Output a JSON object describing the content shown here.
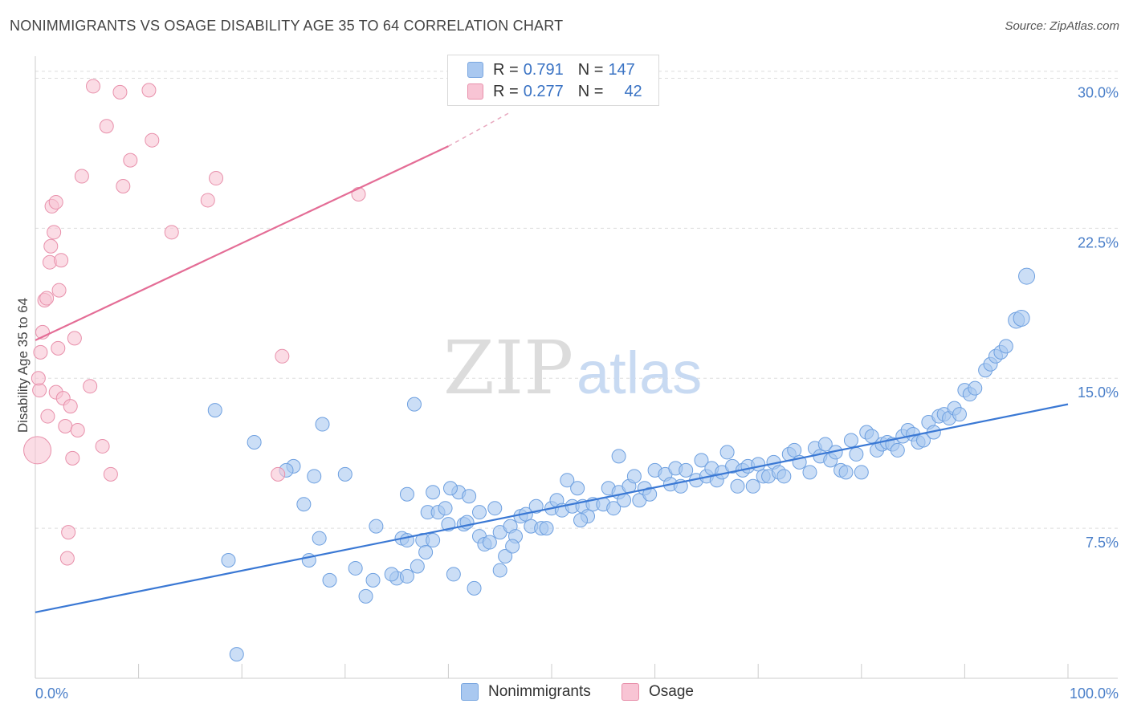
{
  "header": {
    "title": "NONIMMIGRANTS VS OSAGE DISABILITY AGE 35 TO 64 CORRELATION CHART",
    "source": "Source: ZipAtlas.com"
  },
  "watermark": {
    "zip": "ZIP",
    "atlas": "atlas"
  },
  "legend": {
    "rows": [
      {
        "r_label": "R =",
        "r_value": "0.791",
        "n_label": "N =",
        "n_value": "147",
        "color": "#a9c8f0",
        "border": "#7aa7e0"
      },
      {
        "r_label": "R =",
        "r_value": "0.277",
        "n_label": "N =",
        "n_value": "42",
        "color": "#f8c4d4",
        "border": "#e890ab"
      }
    ]
  },
  "bottom_legend": [
    {
      "label": "Nonimmigrants",
      "color": "#a9c8f0",
      "border": "#7aa7e0"
    },
    {
      "label": "Osage",
      "color": "#f8c4d4",
      "border": "#e890ab"
    }
  ],
  "chart_data": {
    "type": "scatter",
    "title": "NONIMMIGRANTS VS OSAGE DISABILITY AGE 35 TO 64 CORRELATION CHART",
    "xlabel": "",
    "ylabel": "Disability Age 35 to 64",
    "xlim": [
      0,
      100
    ],
    "ylim": [
      0,
      30.7
    ],
    "x_tick_labels": [
      "0.0%",
      "100.0%"
    ],
    "y_ticks": [
      {
        "value": 7.5,
        "label": "7.5%"
      },
      {
        "value": 15.0,
        "label": "15.0%"
      },
      {
        "value": 22.5,
        "label": "22.5%"
      },
      {
        "value": 30.0,
        "label": "30.0%"
      }
    ],
    "grid": true,
    "legend_position": "top-center",
    "colors": {
      "nonimmigrants": "#3a78d4",
      "osage": "#e46d96"
    },
    "series": [
      {
        "name": "Nonimmigrants",
        "color": "#a9c8f0",
        "stroke": "#6ea0e0",
        "trend": {
          "x0": 0,
          "y0": 3.3,
          "x1": 100,
          "y1": 13.7
        },
        "points": [
          [
            19.5,
            1.2
          ],
          [
            17.4,
            13.4
          ],
          [
            18.7,
            5.9
          ],
          [
            21.2,
            11.8
          ],
          [
            25,
            10.6
          ],
          [
            26,
            8.7
          ],
          [
            26.5,
            5.9
          ],
          [
            27,
            10.1
          ],
          [
            27.5,
            7
          ],
          [
            27.8,
            12.7
          ],
          [
            28.5,
            4.9
          ],
          [
            30,
            10.2
          ],
          [
            31,
            5.5
          ],
          [
            32,
            4.1
          ],
          [
            32.7,
            4.9
          ],
          [
            33,
            7.6
          ],
          [
            35,
            5
          ],
          [
            35.5,
            7
          ],
          [
            36,
            5.1
          ],
          [
            36,
            9.2
          ],
          [
            36,
            6.9
          ],
          [
            36.7,
            13.7
          ],
          [
            37,
            5.6
          ],
          [
            37.5,
            6.9
          ],
          [
            38,
            8.3
          ],
          [
            38.5,
            6.9
          ],
          [
            38.5,
            9.3
          ],
          [
            39,
            8.3
          ],
          [
            39.7,
            8.5
          ],
          [
            40,
            7.7
          ],
          [
            40.5,
            5.2
          ],
          [
            41,
            9.3
          ],
          [
            41.5,
            7.7
          ],
          [
            41.8,
            7.8
          ],
          [
            42,
            9.1
          ],
          [
            42.5,
            4.5
          ],
          [
            43,
            7.1
          ],
          [
            43,
            8.3
          ],
          [
            43.5,
            6.7
          ],
          [
            44,
            6.8
          ],
          [
            44.5,
            8.5
          ],
          [
            45,
            5.4
          ],
          [
            45,
            7.3
          ],
          [
            45.5,
            6.1
          ],
          [
            46,
            7.6
          ],
          [
            46.5,
            7.1
          ],
          [
            47,
            8.1
          ],
          [
            47.5,
            8.2
          ],
          [
            48,
            7.6
          ],
          [
            48.5,
            8.6
          ],
          [
            49,
            7.5
          ],
          [
            49.5,
            7.5
          ],
          [
            50,
            8.5
          ],
          [
            50.5,
            8.9
          ],
          [
            51,
            8.4
          ],
          [
            51.5,
            9.9
          ],
          [
            52,
            8.6
          ],
          [
            52.5,
            9.5
          ],
          [
            53,
            8.6
          ],
          [
            53.5,
            8.1
          ],
          [
            54,
            8.7
          ],
          [
            55,
            8.7
          ],
          [
            55.5,
            9.5
          ],
          [
            56,
            8.5
          ],
          [
            56.5,
            11.1
          ],
          [
            56.5,
            9.3
          ],
          [
            57,
            8.9
          ],
          [
            57.5,
            9.6
          ],
          [
            58,
            10.1
          ],
          [
            58.5,
            8.9
          ],
          [
            59,
            9.5
          ],
          [
            59.5,
            9.2
          ],
          [
            60,
            10.4
          ],
          [
            61,
            10.2
          ],
          [
            61.5,
            9.7
          ],
          [
            62,
            10.5
          ],
          [
            62.5,
            9.6
          ],
          [
            63,
            10.4
          ],
          [
            64,
            9.9
          ],
          [
            64.5,
            10.9
          ],
          [
            65,
            10.1
          ],
          [
            65.5,
            10.5
          ],
          [
            66,
            9.9
          ],
          [
            66.5,
            10.3
          ],
          [
            67,
            11.3
          ],
          [
            67.5,
            10.6
          ],
          [
            68,
            9.6
          ],
          [
            68.5,
            10.4
          ],
          [
            69,
            10.6
          ],
          [
            69.5,
            9.6
          ],
          [
            70,
            10.7
          ],
          [
            70.5,
            10.1
          ],
          [
            71,
            10.1
          ],
          [
            71.5,
            10.8
          ],
          [
            72,
            10.3
          ],
          [
            72.5,
            10.1
          ],
          [
            73,
            11.2
          ],
          [
            73.5,
            11.4
          ],
          [
            74,
            10.8
          ],
          [
            75,
            10.3
          ],
          [
            75.5,
            11.5
          ],
          [
            76,
            11.1
          ],
          [
            76.5,
            11.7
          ],
          [
            77,
            10.9
          ],
          [
            77.5,
            11.3
          ],
          [
            78,
            10.4
          ],
          [
            78.5,
            10.3
          ],
          [
            79,
            11.9
          ],
          [
            79.5,
            11.2
          ],
          [
            80,
            10.3
          ],
          [
            80.5,
            12.3
          ],
          [
            81,
            12.1
          ],
          [
            81.5,
            11.4
          ],
          [
            82,
            11.7
          ],
          [
            82.5,
            11.8
          ],
          [
            83,
            11.7
          ],
          [
            83.5,
            11.4
          ],
          [
            84,
            12.1
          ],
          [
            84.5,
            12.4
          ],
          [
            85,
            12.2
          ],
          [
            85.5,
            11.8
          ],
          [
            86,
            11.9
          ],
          [
            86.5,
            12.8
          ],
          [
            87,
            12.3
          ],
          [
            87.5,
            13.1
          ],
          [
            88,
            13.2
          ],
          [
            88.5,
            13.0
          ],
          [
            89,
            13.5
          ],
          [
            89.5,
            13.2
          ],
          [
            90,
            14.4
          ],
          [
            90.5,
            14.2
          ],
          [
            91,
            14.5
          ],
          [
            92,
            15.4
          ],
          [
            92.5,
            15.7
          ],
          [
            93,
            16.1
          ],
          [
            93.5,
            16.3
          ],
          [
            94,
            16.6
          ],
          [
            95,
            17.9
          ],
          [
            95.5,
            18.0
          ],
          [
            96,
            20.1
          ],
          [
            24.3,
            10.4
          ],
          [
            34.5,
            5.2
          ],
          [
            37.8,
            6.3
          ],
          [
            40.2,
            9.5
          ],
          [
            46.2,
            6.6
          ],
          [
            52.8,
            7.9
          ]
        ]
      },
      {
        "name": "Osage",
        "color": "#f8c4d4",
        "stroke": "#e890ab",
        "trend": {
          "x0": 0,
          "y0": 16.9,
          "x1": 40,
          "y1": 26.6
        },
        "trend_dashed": {
          "x0": 40,
          "y0": 26.6,
          "x1": 46,
          "y1": 28.3
        },
        "points": [
          [
            0.2,
            11.4
          ],
          [
            0.4,
            14.4
          ],
          [
            0.5,
            16.3
          ],
          [
            0.7,
            17.3
          ],
          [
            0.9,
            18.9
          ],
          [
            1.1,
            19.0
          ],
          [
            1.2,
            13.1
          ],
          [
            1.4,
            20.8
          ],
          [
            1.6,
            23.6
          ],
          [
            1.8,
            22.3
          ],
          [
            2.0,
            14.3
          ],
          [
            2.2,
            16.5
          ],
          [
            2.3,
            19.4
          ],
          [
            2.5,
            20.9
          ],
          [
            2.7,
            14.0
          ],
          [
            2.9,
            12.6
          ],
          [
            3.1,
            6.0
          ],
          [
            3.2,
            7.3
          ],
          [
            3.4,
            13.6
          ],
          [
            3.6,
            11.0
          ],
          [
            3.8,
            17.0
          ],
          [
            4.1,
            12.4
          ],
          [
            4.5,
            25.1
          ],
          [
            5.3,
            14.6
          ],
          [
            5.6,
            29.6
          ],
          [
            6.5,
            11.6
          ],
          [
            6.9,
            27.6
          ],
          [
            7.3,
            10.2
          ],
          [
            8.2,
            29.3
          ],
          [
            8.5,
            24.6
          ],
          [
            9.2,
            25.9
          ],
          [
            11.0,
            29.4
          ],
          [
            11.3,
            26.9
          ],
          [
            13.2,
            22.3
          ],
          [
            16.7,
            23.9
          ],
          [
            17.5,
            25.0
          ],
          [
            23.5,
            10.2
          ],
          [
            23.9,
            16.1
          ],
          [
            31.3,
            24.2
          ],
          [
            2.0,
            23.8
          ],
          [
            1.5,
            21.6
          ],
          [
            0.3,
            15.0
          ]
        ]
      }
    ]
  }
}
